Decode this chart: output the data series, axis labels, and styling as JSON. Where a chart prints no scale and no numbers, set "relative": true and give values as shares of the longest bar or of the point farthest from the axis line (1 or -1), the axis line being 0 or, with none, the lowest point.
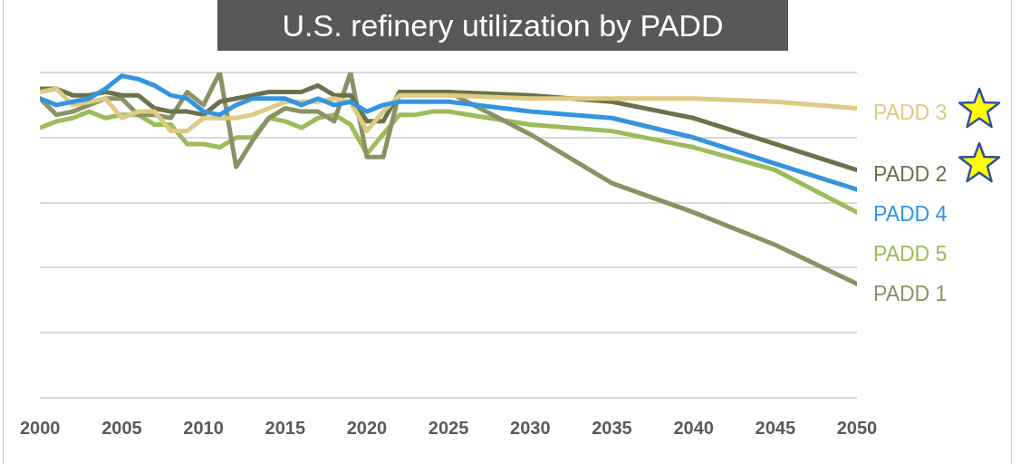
{
  "chart_data": {
    "type": "line",
    "title": "U.S. refinery utilization by PADD",
    "relative": true,
    "grid": "y",
    "legend": false,
    "marker": "none",
    "line_style": "solid",
    "x": [
      2000,
      2001,
      2002,
      2003,
      2004,
      2005,
      2006,
      2007,
      2008,
      2009,
      2010,
      2011,
      2012,
      2013,
      2014,
      2015,
      2016,
      2017,
      2018,
      2019,
      2020,
      2021,
      2022,
      2023,
      2024,
      2025,
      2030,
      2035,
      2040,
      2045,
      2050
    ],
    "xlim": [
      2000,
      2050
    ],
    "xticks": [
      2000,
      2005,
      2010,
      2015,
      2020,
      2025,
      2030,
      2035,
      2040,
      2045,
      2050
    ],
    "series": [
      {
        "name": "PADD 4",
        "color": "#3394e0",
        "values": [
          0.92,
          0.9,
          0.91,
          0.92,
          0.95,
          0.99,
          0.98,
          0.96,
          0.93,
          0.92,
          0.88,
          0.87,
          0.9,
          0.92,
          0.92,
          0.92,
          0.9,
          0.92,
          0.9,
          0.91,
          0.88,
          0.9,
          0.91,
          0.91,
          0.91,
          0.91,
          0.88,
          0.86,
          0.8,
          0.72,
          0.64
        ]
      },
      {
        "name": "PADD 3",
        "color": "#dccb82",
        "values": [
          0.94,
          0.95,
          0.9,
          0.91,
          0.92,
          0.86,
          0.88,
          0.88,
          0.82,
          0.82,
          0.86,
          0.86,
          0.86,
          0.87,
          0.89,
          0.91,
          0.91,
          0.91,
          0.92,
          0.91,
          0.82,
          0.88,
          0.93,
          0.93,
          0.93,
          0.93,
          0.92,
          0.92,
          0.92,
          0.91,
          0.89
        ]
      },
      {
        "name": "PADD 2",
        "color": "#6b7149",
        "values": [
          0.95,
          0.95,
          0.93,
          0.93,
          0.94,
          0.93,
          0.93,
          0.89,
          0.88,
          0.88,
          0.87,
          0.91,
          0.92,
          0.93,
          0.94,
          0.94,
          0.94,
          0.96,
          0.93,
          0.93,
          0.85,
          0.85,
          0.94,
          0.94,
          0.94,
          0.94,
          0.93,
          0.91,
          0.86,
          0.78,
          0.7
        ]
      },
      {
        "name": "PADD 1",
        "color": "#8a9264",
        "values": [
          0.92,
          0.87,
          0.88,
          0.9,
          0.92,
          0.92,
          0.87,
          0.87,
          0.86,
          0.94,
          0.9,
          1,
          0.71,
          0.79,
          0.86,
          0.89,
          0.88,
          0.88,
          0.85,
          1,
          0.74,
          0.74,
          0.94,
          0.94,
          0.94,
          0.94,
          0.81,
          0.66,
          0.57,
          0.47,
          0.35
        ]
      },
      {
        "name": "PADD 5",
        "color": "#9fba5a",
        "values": [
          0.83,
          0.85,
          0.86,
          0.88,
          0.86,
          0.87,
          0.87,
          0.84,
          0.84,
          0.78,
          0.78,
          0.77,
          0.8,
          0.8,
          0.86,
          0.85,
          0.83,
          0.86,
          0.87,
          0.84,
          0.75,
          0.81,
          0.87,
          0.87,
          0.88,
          0.88,
          0.84,
          0.82,
          0.77,
          0.7,
          0.57
        ]
      }
    ]
  }
}
